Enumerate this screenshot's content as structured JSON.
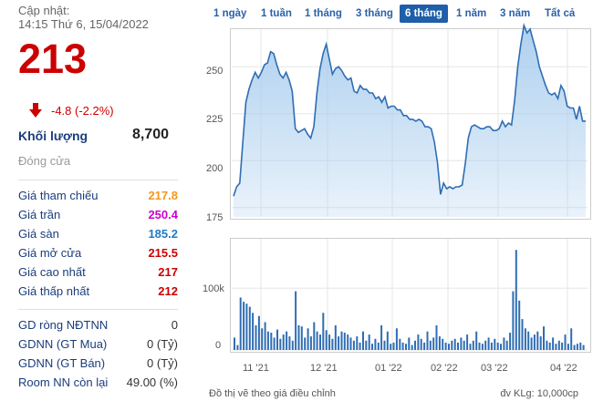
{
  "summary": {
    "update_label": "Cập nhật:",
    "update_time": "14:15 Thứ 6, 15/04/2022",
    "price": "213",
    "change": "-4.8 (-2.2%)",
    "volume_label": "Khối lượng",
    "volume_value": "8,700",
    "close_label": "Đóng cửa"
  },
  "price_stats": [
    {
      "label": "Giá tham chiếu",
      "value": "217.8",
      "color": "#f7941d"
    },
    {
      "label": "Giá trần",
      "value": "250.4",
      "color": "#cc00cc"
    },
    {
      "label": "Giá sàn",
      "value": "185.2",
      "color": "#1f7cc2"
    },
    {
      "label": "Giá mở cửa",
      "value": "215.5",
      "color": "#cc0000"
    },
    {
      "label": "Giá cao nhất",
      "value": "217",
      "color": "#cc0000"
    },
    {
      "label": "Giá thấp nhất",
      "value": "212",
      "color": "#cc0000"
    }
  ],
  "foreign_stats": [
    {
      "label": "GD ròng NĐTNN",
      "value": "0"
    },
    {
      "label": "GDNN (GT Mua)",
      "value": "0 (Tỷ)"
    },
    {
      "label": "GDNN (GT Bán)",
      "value": "0 (Tỷ)"
    },
    {
      "label": "Room NN còn lại",
      "value": "49.00 (%)"
    }
  ],
  "range_tabs": [
    "1 ngày",
    "1 tuần",
    "1 tháng",
    "3 tháng",
    "6 tháng",
    "1 năm",
    "3 năm",
    "Tất cả"
  ],
  "active_tab": "6 tháng",
  "footer": {
    "note": "Đồ thị vẽ theo giá điều chỉnh",
    "unit": "đv KLg: 10,000cp"
  },
  "chart_data": [
    {
      "type": "area",
      "ylim": [
        170,
        270
      ],
      "yticks": [
        175,
        200,
        225,
        250
      ],
      "x_tick_labels": [
        "11 '21",
        "12 '21",
        "01 '22",
        "02 '22",
        "03 '22",
        "04 '22"
      ],
      "series": [
        {
          "values": [
            181,
            186,
            188,
            210,
            231,
            238,
            243,
            247,
            244,
            247,
            251,
            252,
            258,
            257,
            251,
            246,
            244,
            247,
            243,
            237,
            217,
            215,
            216,
            217,
            214,
            212,
            218,
            236,
            249,
            257,
            262,
            254,
            246,
            249,
            250,
            248,
            245,
            243,
            244,
            237,
            236,
            240,
            238,
            238,
            236,
            236,
            233,
            234,
            231,
            234,
            228,
            229,
            229,
            227,
            227,
            224,
            224,
            222,
            222,
            221,
            222,
            221,
            218,
            218,
            217,
            210,
            199,
            182,
            188,
            185,
            186,
            185,
            186,
            186,
            187,
            198,
            212,
            218,
            219,
            218,
            217,
            217,
            218,
            218,
            216,
            216,
            217,
            221,
            218,
            220,
            219,
            232,
            250,
            262,
            272,
            268,
            270,
            264,
            258,
            250,
            245,
            240,
            236,
            235,
            236,
            233,
            240,
            237,
            229,
            228,
            228,
            222,
            229,
            221,
            221
          ]
        }
      ],
      "color": "#2f6db3",
      "fill": "#a9cdee"
    },
    {
      "type": "bar",
      "yticks": [
        0,
        100000
      ],
      "ytick_labels": [
        "0",
        "100k"
      ],
      "ylim": [
        0,
        180000
      ],
      "values": [
        20000,
        8000,
        85000,
        78000,
        75000,
        70000,
        60000,
        40000,
        55000,
        35000,
        45000,
        30000,
        28000,
        20000,
        33000,
        18000,
        25000,
        30000,
        22000,
        15000,
        95000,
        40000,
        38000,
        20000,
        35000,
        22000,
        45000,
        30000,
        25000,
        60000,
        32000,
        25000,
        18000,
        40000,
        22000,
        30000,
        28000,
        25000,
        20000,
        15000,
        22000,
        12000,
        30000,
        15000,
        25000,
        10000,
        18000,
        12000,
        40000,
        15000,
        30000,
        10000,
        12000,
        35000,
        18000,
        12000,
        10000,
        20000,
        8000,
        15000,
        25000,
        18000,
        12000,
        30000,
        15000,
        20000,
        40000,
        22000,
        18000,
        12000,
        10000,
        15000,
        18000,
        12000,
        20000,
        15000,
        25000,
        10000,
        15000,
        30000,
        12000,
        10000,
        15000,
        20000,
        12000,
        18000,
        12000,
        10000,
        20000,
        15000,
        28000,
        95000,
        162000,
        80000,
        50000,
        35000,
        30000,
        20000,
        25000,
        30000,
        22000,
        38000,
        15000,
        12000,
        20000,
        10000,
        15000,
        12000,
        25000,
        10000,
        35000,
        8000,
        10000,
        12000,
        8000
      ]
    }
  ]
}
